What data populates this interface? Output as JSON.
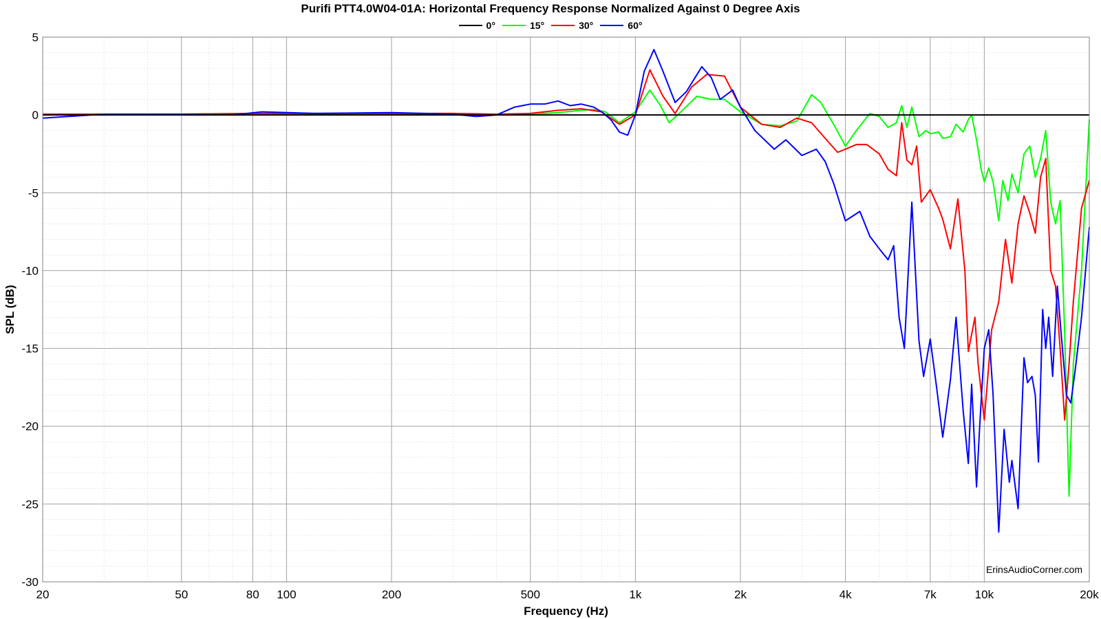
{
  "chart_data": {
    "type": "line",
    "title": "Purifi PTT4.0W04-01A: Horizontal Frequency Response Normalized Against 0 Degree Axis",
    "xlabel": "Frequency (Hz)",
    "ylabel": "SPL (dB)",
    "xscale": "log",
    "xlim": [
      20,
      20000
    ],
    "ylim": [
      -30,
      5
    ],
    "grid": true,
    "legend_position": "top-center",
    "watermark": "ErinsAudioCorner.com",
    "x_tick_values": [
      20,
      50,
      80,
      100,
      200,
      500,
      1000,
      2000,
      4000,
      7000,
      10000,
      20000
    ],
    "x_tick_labels": [
      "20",
      "50",
      "80",
      "100",
      "200",
      "500",
      "1k",
      "2k",
      "4k",
      "7k",
      "10k",
      "20k"
    ],
    "y_tick_values": [
      5,
      0,
      -5,
      -10,
      -15,
      -20,
      -25,
      -30
    ],
    "y_tick_labels": [
      "5",
      "0",
      "-5",
      "-10",
      "-15",
      "-20",
      "-25",
      "-30"
    ],
    "series": [
      {
        "name": "0°",
        "color": "#000000",
        "points": [
          [
            20,
            0
          ],
          [
            20000,
            0
          ]
        ]
      },
      {
        "name": "15°",
        "color": "#00ff00",
        "points": [
          [
            20,
            0
          ],
          [
            30,
            0.05
          ],
          [
            50,
            0.05
          ],
          [
            80,
            0.1
          ],
          [
            200,
            0.05
          ],
          [
            400,
            0.05
          ],
          [
            500,
            0.05
          ],
          [
            600,
            0.15
          ],
          [
            700,
            0.3
          ],
          [
            760,
            0.35
          ],
          [
            820,
            0.2
          ],
          [
            900,
            -0.5
          ],
          [
            1000,
            0.2
          ],
          [
            1100,
            1.6
          ],
          [
            1180,
            0.6
          ],
          [
            1250,
            -0.5
          ],
          [
            1350,
            0.2
          ],
          [
            1500,
            1.2
          ],
          [
            1650,
            1.0
          ],
          [
            1800,
            1.0
          ],
          [
            2000,
            0.2
          ],
          [
            2300,
            -0.6
          ],
          [
            2600,
            -0.7
          ],
          [
            2900,
            -0.4
          ],
          [
            3200,
            1.3
          ],
          [
            3400,
            0.8
          ],
          [
            3700,
            -0.6
          ],
          [
            4000,
            -2.0
          ],
          [
            4300,
            -1.0
          ],
          [
            4700,
            0.1
          ],
          [
            5000,
            -0.1
          ],
          [
            5300,
            -0.8
          ],
          [
            5600,
            -0.5
          ],
          [
            5800,
            0.6
          ],
          [
            6000,
            -0.8
          ],
          [
            6200,
            0.5
          ],
          [
            6500,
            -1.4
          ],
          [
            6800,
            -1.0
          ],
          [
            7000,
            -1.2
          ],
          [
            7400,
            -1.1
          ],
          [
            7600,
            -1.5
          ],
          [
            8000,
            -1.4
          ],
          [
            8300,
            -0.6
          ],
          [
            8700,
            -1.1
          ],
          [
            9000,
            -0.3
          ],
          [
            9200,
            0.0
          ],
          [
            9500,
            -1.6
          ],
          [
            9800,
            -3.5
          ],
          [
            10000,
            -4.3
          ],
          [
            10300,
            -3.4
          ],
          [
            10600,
            -4.3
          ],
          [
            11000,
            -6.8
          ],
          [
            11300,
            -4.2
          ],
          [
            11700,
            -5.5
          ],
          [
            12000,
            -3.8
          ],
          [
            12500,
            -5.0
          ],
          [
            13000,
            -2.5
          ],
          [
            13500,
            -2.0
          ],
          [
            14000,
            -4.0
          ],
          [
            14500,
            -2.8
          ],
          [
            15000,
            -1.0
          ],
          [
            15500,
            -5.6
          ],
          [
            16000,
            -7.0
          ],
          [
            16500,
            -5.5
          ],
          [
            17000,
            -14.0
          ],
          [
            17500,
            -24.5
          ],
          [
            18000,
            -16.0
          ],
          [
            19000,
            -10.0
          ],
          [
            20000,
            -0.3
          ]
        ]
      },
      {
        "name": "30°",
        "color": "#ff0000",
        "points": [
          [
            20,
            0.05
          ],
          [
            50,
            0.05
          ],
          [
            80,
            0.1
          ],
          [
            200,
            0.1
          ],
          [
            300,
            0.1
          ],
          [
            400,
            0.05
          ],
          [
            500,
            0.1
          ],
          [
            600,
            0.3
          ],
          [
            700,
            0.4
          ],
          [
            800,
            0.2
          ],
          [
            900,
            -0.6
          ],
          [
            1000,
            0.0
          ],
          [
            1100,
            2.9
          ],
          [
            1200,
            1.2
          ],
          [
            1300,
            0.1
          ],
          [
            1450,
            1.8
          ],
          [
            1600,
            2.6
          ],
          [
            1800,
            2.5
          ],
          [
            2000,
            0.5
          ],
          [
            2300,
            -0.6
          ],
          [
            2600,
            -0.8
          ],
          [
            2900,
            -0.2
          ],
          [
            3200,
            -0.5
          ],
          [
            3500,
            -1.5
          ],
          [
            3800,
            -2.4
          ],
          [
            4000,
            -2.2
          ],
          [
            4300,
            -1.9
          ],
          [
            4600,
            -1.9
          ],
          [
            5000,
            -2.5
          ],
          [
            5300,
            -3.5
          ],
          [
            5600,
            -3.9
          ],
          [
            5800,
            -0.5
          ],
          [
            6000,
            -2.9
          ],
          [
            6200,
            -3.2
          ],
          [
            6400,
            -2.0
          ],
          [
            6600,
            -5.6
          ],
          [
            7000,
            -4.8
          ],
          [
            7400,
            -6.0
          ],
          [
            7600,
            -6.7
          ],
          [
            8000,
            -8.6
          ],
          [
            8400,
            -5.4
          ],
          [
            8800,
            -10.0
          ],
          [
            9000,
            -15.2
          ],
          [
            9400,
            -13.0
          ],
          [
            9600,
            -16.0
          ],
          [
            10000,
            -19.6
          ],
          [
            10500,
            -13.8
          ],
          [
            11000,
            -12.0
          ],
          [
            11500,
            -8.0
          ],
          [
            12000,
            -10.8
          ],
          [
            12500,
            -7.0
          ],
          [
            13000,
            -5.2
          ],
          [
            13500,
            -6.3
          ],
          [
            14000,
            -7.6
          ],
          [
            14500,
            -4.0
          ],
          [
            15000,
            -2.8
          ],
          [
            15500,
            -10.0
          ],
          [
            16000,
            -11.0
          ],
          [
            16500,
            -15.0
          ],
          [
            17000,
            -19.6
          ],
          [
            17500,
            -16.0
          ],
          [
            18000,
            -12.0
          ],
          [
            19000,
            -6.0
          ],
          [
            20000,
            -4.2
          ]
        ]
      },
      {
        "name": "60°",
        "color": "#0000ff",
        "points": [
          [
            20,
            -0.2
          ],
          [
            30,
            0.05
          ],
          [
            50,
            0.05
          ],
          [
            70,
            0.0
          ],
          [
            85,
            0.2
          ],
          [
            120,
            0.1
          ],
          [
            200,
            0.15
          ],
          [
            300,
            0.05
          ],
          [
            350,
            -0.1
          ],
          [
            400,
            0.0
          ],
          [
            450,
            0.5
          ],
          [
            500,
            0.7
          ],
          [
            550,
            0.7
          ],
          [
            600,
            0.9
          ],
          [
            650,
            0.6
          ],
          [
            700,
            0.7
          ],
          [
            760,
            0.5
          ],
          [
            800,
            0.2
          ],
          [
            850,
            -0.3
          ],
          [
            900,
            -1.1
          ],
          [
            950,
            -1.3
          ],
          [
            1000,
            0.0
          ],
          [
            1060,
            2.8
          ],
          [
            1130,
            4.2
          ],
          [
            1200,
            2.8
          ],
          [
            1300,
            0.8
          ],
          [
            1400,
            1.5
          ],
          [
            1550,
            3.1
          ],
          [
            1650,
            2.4
          ],
          [
            1750,
            1.0
          ],
          [
            1900,
            1.6
          ],
          [
            2000,
            0.5
          ],
          [
            2200,
            -1.0
          ],
          [
            2500,
            -2.2
          ],
          [
            2700,
            -1.6
          ],
          [
            3000,
            -2.6
          ],
          [
            3300,
            -2.2
          ],
          [
            3500,
            -3.0
          ],
          [
            3700,
            -4.4
          ],
          [
            4000,
            -6.8
          ],
          [
            4400,
            -6.2
          ],
          [
            4700,
            -7.8
          ],
          [
            5000,
            -8.6
          ],
          [
            5300,
            -9.3
          ],
          [
            5500,
            -8.4
          ],
          [
            5700,
            -13.0
          ],
          [
            5900,
            -15.0
          ],
          [
            6200,
            -5.6
          ],
          [
            6500,
            -14.5
          ],
          [
            6700,
            -16.8
          ],
          [
            7000,
            -14.4
          ],
          [
            7300,
            -17.5
          ],
          [
            7600,
            -20.7
          ],
          [
            8000,
            -17.0
          ],
          [
            8300,
            -13.0
          ],
          [
            8700,
            -19.0
          ],
          [
            9000,
            -22.4
          ],
          [
            9200,
            -17.3
          ],
          [
            9500,
            -23.9
          ],
          [
            9700,
            -20.0
          ],
          [
            10000,
            -15.0
          ],
          [
            10300,
            -13.8
          ],
          [
            10600,
            -18.0
          ],
          [
            11000,
            -26.8
          ],
          [
            11400,
            -20.2
          ],
          [
            11800,
            -23.6
          ],
          [
            12000,
            -22.2
          ],
          [
            12500,
            -25.3
          ],
          [
            13000,
            -15.6
          ],
          [
            13300,
            -17.2
          ],
          [
            13700,
            -16.8
          ],
          [
            14000,
            -18.0
          ],
          [
            14300,
            -22.3
          ],
          [
            14700,
            -12.5
          ],
          [
            15000,
            -15.0
          ],
          [
            15300,
            -13.0
          ],
          [
            15700,
            -16.8
          ],
          [
            16200,
            -11.0
          ],
          [
            16600,
            -14.0
          ],
          [
            17200,
            -18.0
          ],
          [
            17700,
            -18.5
          ],
          [
            18200,
            -16.5
          ],
          [
            19000,
            -13.0
          ],
          [
            20000,
            -7.2
          ]
        ]
      }
    ]
  }
}
